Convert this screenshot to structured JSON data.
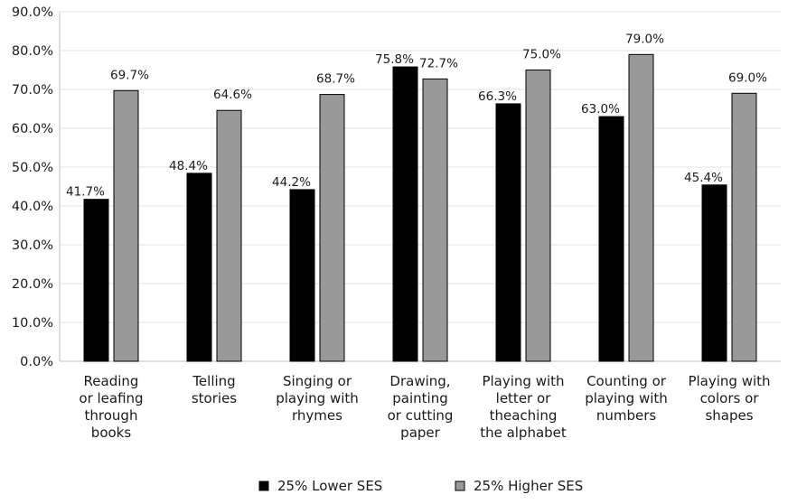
{
  "chart_data": {
    "type": "bar",
    "title": "",
    "xlabel": "",
    "ylabel": "",
    "ylim": [
      0,
      90
    ],
    "y_ticks": [
      "0.0%",
      "10.0%",
      "20.0%",
      "30.0%",
      "40.0%",
      "50.0%",
      "60.0%",
      "70.0%",
      "80.0%",
      "90.0%"
    ],
    "grid": true,
    "legend_position": "bottom",
    "categories": [
      [
        "Reading",
        "or leafing",
        "through",
        "books"
      ],
      [
        "Telling",
        "stories"
      ],
      [
        "Singing or",
        "playing with",
        "rhymes"
      ],
      [
        "Drawing,",
        "painting",
        "or cutting",
        "paper"
      ],
      [
        "Playing with",
        "letter or",
        "theaching",
        "the alphabet"
      ],
      [
        "Counting or",
        "playing with",
        "numbers"
      ],
      [
        "Playing with",
        "colors or",
        "shapes"
      ]
    ],
    "series": [
      {
        "name": "25% Lower SES",
        "color": "#000000",
        "values": [
          41.7,
          48.4,
          44.2,
          75.8,
          66.3,
          63.0,
          45.4
        ],
        "labels": [
          "41.7%",
          "48.4%",
          "44.2%",
          "75.8%",
          "66.3%",
          "63.0%",
          "45.4%"
        ]
      },
      {
        "name": "25% Higher SES",
        "color": "#999999",
        "values": [
          69.7,
          64.6,
          68.7,
          72.7,
          75.0,
          79.0,
          69.0
        ],
        "labels": [
          "69.7%",
          "64.6%",
          "68.7%",
          "72.7%",
          "75.0%",
          "79.0%",
          "69.0%"
        ]
      }
    ]
  }
}
